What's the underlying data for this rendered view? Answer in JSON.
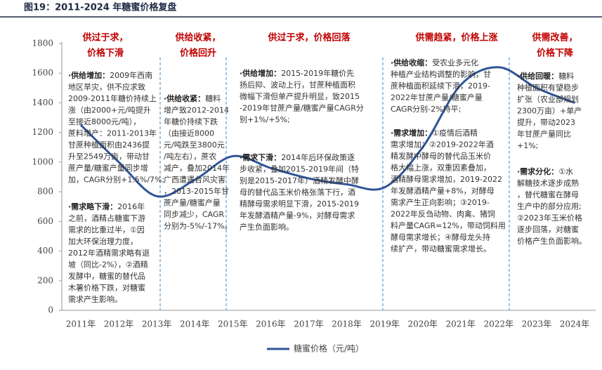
{
  "chart_data": {
    "type": "line",
    "title": "图19：2011-2024 年糖蜜价格复盘",
    "categories": [
      "2011年",
      "2012年",
      "2013年",
      "2014年",
      "2015年",
      "2016年",
      "2017年",
      "2018年",
      "2019年",
      "2020年",
      "2021年",
      "2022年",
      "2023年",
      "2024年"
    ],
    "series": [
      {
        "name": "糖蜜价格（元/吨）",
        "color": "#2f5597",
        "values": [
          1250,
          1000,
          770,
          880,
          1040,
          960,
          890,
          850,
          830,
          1100,
          1520,
          1640,
          1500,
          1400
        ]
      }
    ],
    "ylim": [
      0,
      1800
    ],
    "yticks": [
      0,
      200,
      400,
      600,
      800,
      1000,
      1200,
      1400,
      1600,
      1800
    ],
    "phases": [
      {
        "lines": [
          "供过于求，",
          "价格下滑"
        ]
      },
      {
        "lines": [
          "供给收紧，",
          "价格回升"
        ]
      },
      {
        "lines": [
          "供过于求，价格回落"
        ]
      },
      {
        "lines": [
          "供需趋紧，价格上涨"
        ]
      },
      {
        "lines": [
          "供需改善，",
          "价格下降"
        ]
      }
    ],
    "annotations": [
      {
        "paragraphs": [
          {
            "head": "·供给增加：",
            "lines": [
              "2009年西南",
              "地区旱灾，供不应求致",
              "2009-2011年糖价持续上",
              "涨（由2000+元/吨提升",
              "至接近8000元/吨），",
              "蔗料增产：2011-2013年",
              "甘蔗种植面积由2436提",
              "升至2549万亩，带动甘",
              "蔗产量/糖蜜产量同步增",
              "加，CAGR分别+1.5%/7%;"
            ]
          },
          {
            "head": "·需求略下滑：",
            "lines": [
              "2016年",
              "之前，酒精占糖蜜下游",
              "需求的比重过半，①因",
              "加大环保治理力度，",
              "2012年酒精需求略有退",
              "坡（同比-2%），②酒精",
              "发酵中，糖蜜的替代品",
              "木薯价格下跌，对糖蜜",
              "需求产生影响。"
            ]
          }
        ]
      },
      {
        "paragraphs": [
          {
            "head": "·供给收紧：",
            "lines": [
              "糖料",
              "增产致2012-2014",
              "年糖价持续下跌",
              "（由接近8000",
              "元/吨跌至3800元",
              "/吨左右），蔗农",
              "减产，叠加2014年",
              "广西遭遇台风灾害",
              "，2013-2015年甘",
              "蔗产量/糖蜜产量",
              "同步减少，CAGR",
              "分别为-5%/-17%。"
            ]
          }
        ]
      },
      {
        "paragraphs": [
          {
            "head": "·供给增加：",
            "lines": [
              "2015-2019年糖价先",
              "扬后抑、波动上行，甘蔗种植面积",
              "微幅下滑但单产提升明显，致2015",
              "-2019年甘蔗产量/糖蜜产量CAGR分",
              "别+1%/+5%;"
            ]
          },
          {
            "head": "·需求下滑：",
            "lines": [
              "2014年后环保政策逐",
              "步收紧，叠加2015-2019年间（特",
              "别是2015-2017年）酒精发酵中酵",
              "母的替代品玉米价格张落下行，酒",
              "精酵母需求明显下滑，2015-2019",
              "年发酵酒精产量-9%，对酵母需求",
              "产生负面影响。"
            ]
          }
        ]
      },
      {
        "paragraphs": [
          {
            "head": "·供给收缩：",
            "lines": [
              "受农业多元化",
              "种植产业结构调整的影响，甘",
              "蔗种植面积延续下滑，2019-",
              "2022年甘蔗产量/糖蜜产量",
              "CAGR分别-2%持平;"
            ]
          },
          {
            "head": "·需求增加：",
            "lines": [
              "①疫情后酒精",
              "需求增加；②2019-2022年酒",
              "精发酵中酵母的替代品玉米价",
              "格大幅上涨，双重因素叠加，",
              "酒精酵母需求增加，2019-2022",
              "年发酵酒精产量+8%，对酵母",
              "需求产生正向影响；③2019-",
              "2022年反刍动物、肉禽、猪饲",
              "料产量CAGR=12%，带动饲料用",
              "酵母需求增长；④酵母龙头持",
              "续扩产，带动糖蜜需求增长。"
            ]
          }
        ]
      },
      {
        "paragraphs": [
          {
            "head": "·供给回暖：",
            "lines": [
              "糖料",
              "种植面积有望稳步",
              "扩张（农业部规划",
              "2300万亩）+单产",
              "提升，带动2023",
              "年甘蔗产量同比",
              "+1%;"
            ]
          },
          {
            "head": "·需求分化：",
            "lines": [
              "①水",
              "解糖技术逐步成熟",
              "，替代糖蜜在酵母",
              "生产中的部分应用;",
              "②2023年玉米价格",
              "逐步回落，对糖蜜",
              "价格产生负面影响。"
            ]
          }
        ]
      }
    ]
  }
}
